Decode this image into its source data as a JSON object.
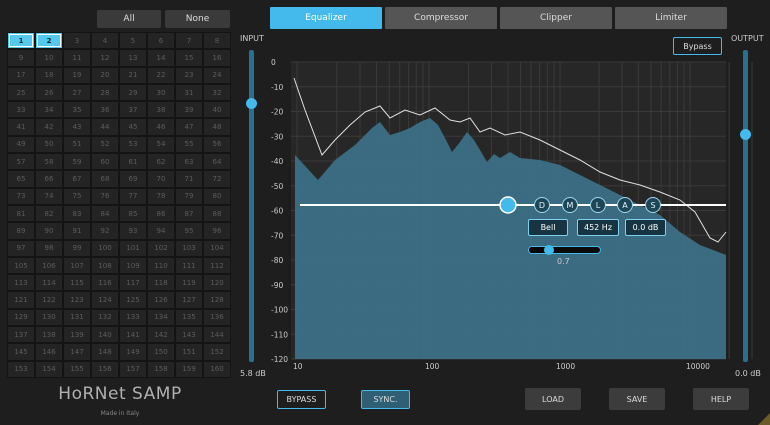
{
  "preset_bar": {
    "all_label": "All",
    "none_label": "None"
  },
  "preset_grid": {
    "cells": [
      "1",
      "2",
      "3",
      "4",
      "5",
      "6",
      "7",
      "8",
      "9",
      "10",
      "11",
      "12",
      "13",
      "14",
      "15",
      "16",
      "17",
      "18",
      "19",
      "20",
      "21",
      "22",
      "23",
      "24",
      "25",
      "26",
      "27",
      "28",
      "29",
      "30",
      "31",
      "32",
      "33",
      "34",
      "35",
      "36",
      "37",
      "38",
      "39",
      "40",
      "41",
      "42",
      "43",
      "44",
      "45",
      "46",
      "47",
      "48",
      "49",
      "50",
      "51",
      "52",
      "53",
      "54",
      "55",
      "56",
      "57",
      "58",
      "59",
      "60",
      "61",
      "62",
      "63",
      "64",
      "65",
      "66",
      "67",
      "68",
      "69",
      "70",
      "71",
      "72",
      "73",
      "74",
      "75",
      "76",
      "77",
      "78",
      "79",
      "80",
      "81",
      "82",
      "83",
      "84",
      "85",
      "86",
      "87",
      "88",
      "89",
      "90",
      "91",
      "92",
      "93",
      "94",
      "95",
      "96",
      "97",
      "98",
      "99",
      "100",
      "101",
      "102",
      "103",
      "104",
      "105",
      "106",
      "107",
      "108",
      "109",
      "110",
      "111",
      "112",
      "113",
      "114",
      "115",
      "116",
      "117",
      "118",
      "119",
      "120",
      "121",
      "122",
      "123",
      "124",
      "125",
      "126",
      "127",
      "128",
      "129",
      "130",
      "131",
      "132",
      "133",
      "134",
      "135",
      "136",
      "137",
      "138",
      "139",
      "140",
      "141",
      "142",
      "143",
      "144",
      "145",
      "146",
      "147",
      "148",
      "149",
      "150",
      "151",
      "152",
      "153",
      "154",
      "155",
      "156",
      "157",
      "158",
      "159",
      "160"
    ],
    "active": [
      "1",
      "2"
    ]
  },
  "brand": {
    "title": "HoRNet SAMP",
    "subtitle": "Made in Italy"
  },
  "tabs": [
    {
      "label": "Equalizer",
      "active": true
    },
    {
      "label": "Compressor",
      "active": false
    },
    {
      "label": "Clipper",
      "active": false
    },
    {
      "label": "Limiter",
      "active": false
    }
  ],
  "eq": {
    "bypass_label": "Bypass",
    "input_label": "INPUT",
    "output_label": "OUTPUT",
    "input_value": "5.8 dB",
    "output_value": "0.0 dB",
    "input_level": 0.83,
    "output_level": 0.73,
    "y_ticks": [
      "0",
      "-10",
      "-20",
      "-30",
      "-40",
      "-50",
      "-60",
      "-70",
      "-80",
      "-90",
      "-100",
      "-110",
      "-120"
    ],
    "x_ticks": [
      "10",
      "100",
      "1000",
      "10000"
    ],
    "node_buttons": [
      "D",
      "M",
      "L",
      "A",
      "S"
    ],
    "band_type": "Bell",
    "band_freq": "452 Hz",
    "band_gain": "0.0 dB",
    "band_q": "0.7",
    "band_q_level": 0.28,
    "colors": {
      "accent": "#43b9ec",
      "spectrum_fill": "#3c6f86",
      "grid": "#3a3a3a"
    }
  },
  "bottom": {
    "bypass_label": "BYPASS",
    "sync_label": "SYNC.",
    "load_label": "LOAD",
    "save_label": "SAVE",
    "help_label": "HELP"
  }
}
